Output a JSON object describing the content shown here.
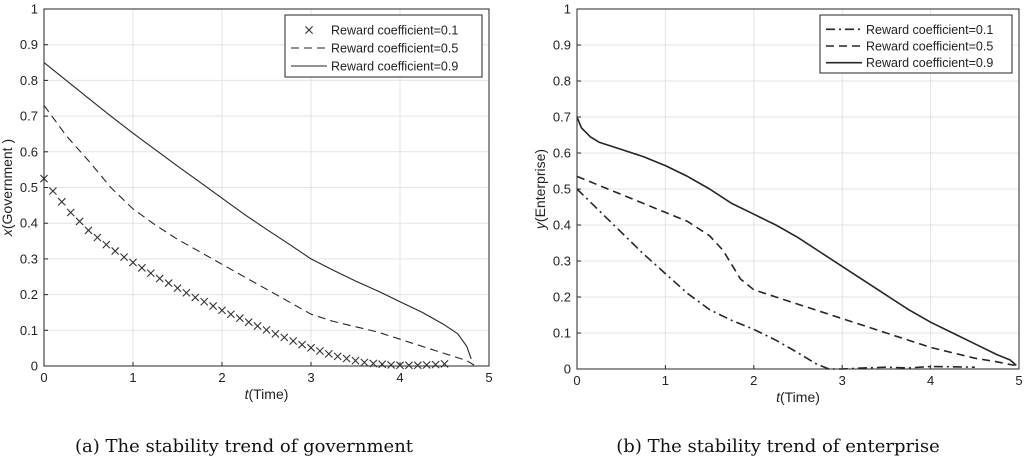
{
  "chart_data": [
    {
      "type": "line",
      "caption": "(a) The stability trend of government",
      "xlabel_italic": "t",
      "xlabel_rest": "(Time)",
      "ylabel_italic": "x",
      "ylabel_rest": "(Government )",
      "xlim": [
        0,
        5
      ],
      "ylim": [
        0,
        1
      ],
      "xticks": [
        0,
        1,
        2,
        3,
        4,
        5
      ],
      "yticks": [
        0,
        0.1,
        0.2,
        0.3,
        0.4,
        0.5,
        0.6,
        0.7,
        0.8,
        0.9,
        1
      ],
      "grid": true,
      "legend": "top-right",
      "series": [
        {
          "name": "Reward coefficient=0.1",
          "style": "cross",
          "x": [
            0,
            0.1,
            0.2,
            0.3,
            0.4,
            0.5,
            0.6,
            0.7,
            0.8,
            0.9,
            1.0,
            1.1,
            1.2,
            1.3,
            1.4,
            1.5,
            1.6,
            1.7,
            1.8,
            1.9,
            2.0,
            2.1,
            2.2,
            2.3,
            2.4,
            2.5,
            2.6,
            2.7,
            2.8,
            2.9,
            3.0,
            3.1,
            3.2,
            3.3,
            3.4,
            3.5,
            3.6,
            3.7,
            3.8,
            3.9,
            4.0,
            4.1,
            4.2,
            4.3,
            4.4,
            4.5
          ],
          "y": [
            0.525,
            0.49,
            0.46,
            0.43,
            0.405,
            0.38,
            0.36,
            0.34,
            0.322,
            0.305,
            0.29,
            0.275,
            0.26,
            0.245,
            0.232,
            0.218,
            0.205,
            0.192,
            0.18,
            0.168,
            0.156,
            0.145,
            0.134,
            0.123,
            0.112,
            0.101,
            0.09,
            0.08,
            0.07,
            0.06,
            0.051,
            0.042,
            0.034,
            0.027,
            0.021,
            0.015,
            0.01,
            0.007,
            0.005,
            0.003,
            0.002,
            0.002,
            0.002,
            0.003,
            0.004,
            0.006
          ]
        },
        {
          "name": "Reward coefficient=0.5",
          "style": "dashed",
          "x": [
            0,
            0.25,
            0.5,
            0.75,
            1.0,
            1.25,
            1.5,
            1.75,
            2.0,
            2.25,
            2.5,
            2.75,
            3.0,
            3.25,
            3.5,
            3.75,
            4.0,
            4.25,
            4.5,
            4.75,
            4.85
          ],
          "y": [
            0.73,
            0.645,
            0.575,
            0.5,
            0.44,
            0.395,
            0.355,
            0.32,
            0.285,
            0.25,
            0.215,
            0.18,
            0.145,
            0.125,
            0.11,
            0.095,
            0.075,
            0.055,
            0.035,
            0.015,
            0.0
          ]
        },
        {
          "name": "Reward coefficient=0.9",
          "style": "solid",
          "x": [
            0,
            0.25,
            0.5,
            0.75,
            1.0,
            1.25,
            1.5,
            1.75,
            2.0,
            2.25,
            2.5,
            2.75,
            3.0,
            3.25,
            3.5,
            3.75,
            4.0,
            4.25,
            4.5,
            4.65,
            4.75,
            4.8
          ],
          "y": [
            0.85,
            0.8,
            0.75,
            0.7,
            0.652,
            0.606,
            0.56,
            0.515,
            0.47,
            0.425,
            0.383,
            0.342,
            0.3,
            0.268,
            0.238,
            0.21,
            0.18,
            0.15,
            0.115,
            0.09,
            0.055,
            0.02
          ]
        }
      ]
    },
    {
      "type": "line",
      "caption": "(b) The stability trend of enterprise",
      "xlabel_italic": "t",
      "xlabel_rest": "(Time)",
      "ylabel_italic": "y",
      "ylabel_rest": "(Enterprise)",
      "xlim": [
        0,
        5
      ],
      "ylim": [
        0,
        1
      ],
      "xticks": [
        0,
        1,
        2,
        3,
        4,
        5
      ],
      "yticks": [
        0,
        0.1,
        0.2,
        0.3,
        0.4,
        0.5,
        0.6,
        0.7,
        0.8,
        0.9,
        1
      ],
      "grid": true,
      "legend": "top-right",
      "series": [
        {
          "name": "Reward coefficient=0.1",
          "style": "dashdot",
          "x": [
            0,
            0.25,
            0.5,
            0.75,
            1.0,
            1.25,
            1.5,
            1.75,
            2.0,
            2.25,
            2.5,
            2.7,
            2.85,
            3.0,
            3.25,
            3.5,
            3.75,
            4.0,
            4.25,
            4.5
          ],
          "y": [
            0.5,
            0.44,
            0.38,
            0.32,
            0.265,
            0.21,
            0.165,
            0.135,
            0.11,
            0.08,
            0.045,
            0.015,
            0.0,
            0.0,
            0.003,
            0.005,
            0.003,
            0.007,
            0.006,
            0.005
          ]
        },
        {
          "name": "Reward coefficient=0.5",
          "style": "dashed",
          "x": [
            0,
            0.25,
            0.5,
            0.75,
            1.0,
            1.25,
            1.5,
            1.65,
            1.75,
            1.85,
            2.0,
            2.25,
            2.5,
            2.75,
            3.0,
            3.25,
            3.5,
            3.75,
            4.0,
            4.25,
            4.5,
            4.75,
            4.95
          ],
          "y": [
            0.535,
            0.51,
            0.485,
            0.46,
            0.435,
            0.41,
            0.37,
            0.33,
            0.29,
            0.25,
            0.22,
            0.2,
            0.18,
            0.16,
            0.14,
            0.12,
            0.1,
            0.08,
            0.06,
            0.045,
            0.03,
            0.02,
            0.01
          ]
        },
        {
          "name": "Reward coefficient=0.9",
          "style": "solid",
          "x": [
            0,
            0.05,
            0.15,
            0.25,
            0.5,
            0.75,
            1.0,
            1.25,
            1.5,
            1.75,
            2.0,
            2.25,
            2.5,
            2.75,
            3.0,
            3.25,
            3.5,
            3.75,
            4.0,
            4.25,
            4.5,
            4.75,
            4.9,
            4.97
          ],
          "y": [
            0.7,
            0.67,
            0.645,
            0.63,
            0.61,
            0.59,
            0.565,
            0.535,
            0.5,
            0.46,
            0.43,
            0.4,
            0.365,
            0.325,
            0.285,
            0.245,
            0.205,
            0.165,
            0.13,
            0.1,
            0.07,
            0.04,
            0.025,
            0.01
          ]
        }
      ]
    }
  ]
}
